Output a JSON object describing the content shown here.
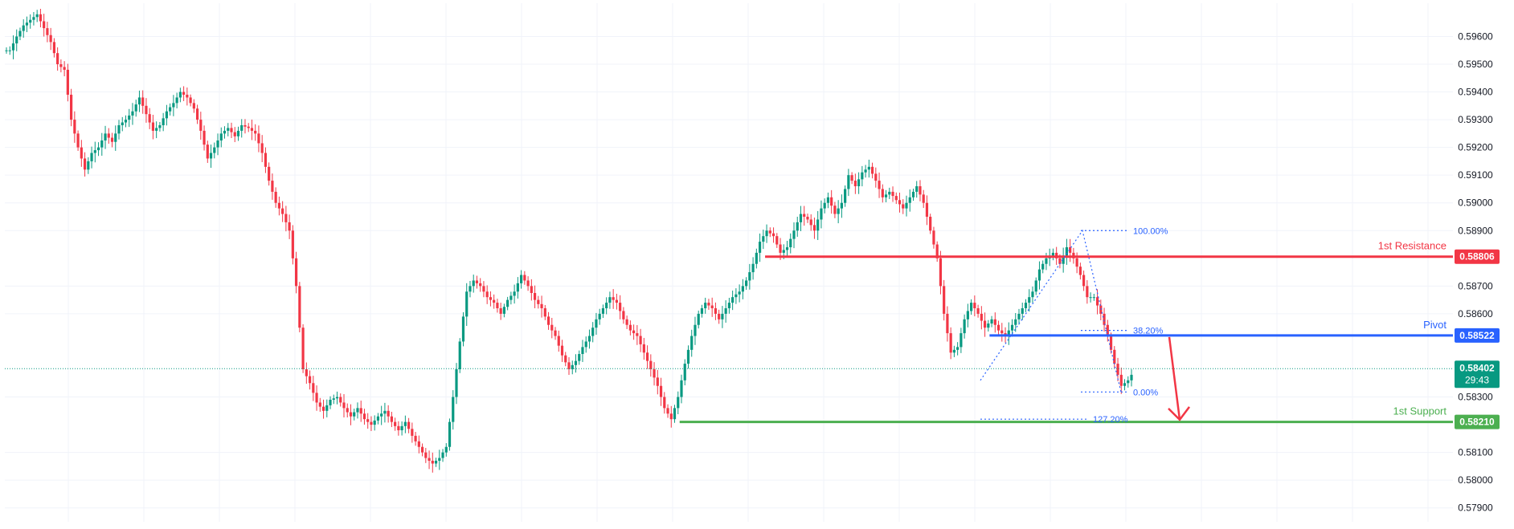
{
  "chart_data": {
    "type": "candlestick",
    "y_axis": {
      "ylim": [
        0.5785,
        0.5972
      ],
      "ticks": [
        "0.59600",
        "0.59500",
        "0.59400",
        "0.59300",
        "0.59200",
        "0.59100",
        "0.59000",
        "0.58900",
        "0.58700",
        "0.58600",
        "0.58300",
        "0.58100",
        "0.58000",
        "0.57900"
      ],
      "tick_values": [
        0.596,
        0.595,
        0.594,
        0.593,
        0.592,
        0.591,
        0.59,
        0.589,
        0.587,
        0.586,
        0.583,
        0.581,
        0.58,
        0.579
      ]
    },
    "levels": [
      {
        "id": "resistance",
        "name": "1st Resistance",
        "value": 0.58806,
        "value_label": "0.58806",
        "color": "#f23645",
        "x_from": 0.525,
        "x_to": 1.0
      },
      {
        "id": "pivot",
        "name": "Pivot",
        "value": 0.58522,
        "value_label": "0.58522",
        "color": "#2962ff",
        "x_from": 0.68,
        "x_to": 1.0
      },
      {
        "id": "support",
        "name": "1st Support",
        "value": 0.5821,
        "value_label": "0.58210",
        "color": "#4caf50",
        "x_from": 0.466,
        "x_to": 1.0
      }
    ],
    "current_price": {
      "value": 0.58402,
      "label": "0.58402",
      "countdown": "29:43",
      "color": "#089981"
    },
    "fib": {
      "color": "#2962ff",
      "levels": [
        {
          "label": "100.00%",
          "value": 0.589
        },
        {
          "label": "38.20%",
          "value": 0.5854
        },
        {
          "label": "0.00%",
          "value": 0.58318
        },
        {
          "label": "127.20%",
          "value": 0.5822
        }
      ]
    },
    "close_series": [
      0.5955,
      0.596,
      0.5964,
      0.5966,
      0.5968,
      0.5963,
      0.5958,
      0.595,
      0.5948,
      0.593,
      0.592,
      0.5912,
      0.5918,
      0.592,
      0.5925,
      0.5922,
      0.5928,
      0.593,
      0.5933,
      0.5938,
      0.5932,
      0.5926,
      0.5928,
      0.5933,
      0.5936,
      0.594,
      0.5938,
      0.5934,
      0.5926,
      0.5916,
      0.592,
      0.5925,
      0.5927,
      0.5924,
      0.5928,
      0.5927,
      0.5925,
      0.5918,
      0.5908,
      0.59,
      0.5896,
      0.589,
      0.587,
      0.584,
      0.5835,
      0.5828,
      0.5825,
      0.5829,
      0.583,
      0.5826,
      0.5823,
      0.5826,
      0.5822,
      0.582,
      0.5823,
      0.5825,
      0.5821,
      0.5818,
      0.5821,
      0.5816,
      0.5812,
      0.5808,
      0.5806,
      0.5808,
      0.5812,
      0.583,
      0.585,
      0.5868,
      0.5872,
      0.587,
      0.5866,
      0.5864,
      0.586,
      0.5865,
      0.5868,
      0.5874,
      0.587,
      0.5865,
      0.5862,
      0.5856,
      0.5852,
      0.5845,
      0.584,
      0.5843,
      0.5848,
      0.5852,
      0.5858,
      0.5862,
      0.5866,
      0.5864,
      0.5858,
      0.5854,
      0.5852,
      0.5846,
      0.584,
      0.5834,
      0.5826,
      0.5822,
      0.583,
      0.5842,
      0.5852,
      0.586,
      0.5864,
      0.5862,
      0.5858,
      0.5862,
      0.5866,
      0.5868,
      0.5872,
      0.5878,
      0.5886,
      0.589,
      0.5888,
      0.5882,
      0.5884,
      0.589,
      0.5896,
      0.5894,
      0.589,
      0.5898,
      0.5902,
      0.5896,
      0.59,
      0.591,
      0.5906,
      0.5911,
      0.5913,
      0.5908,
      0.5902,
      0.5904,
      0.5901,
      0.5898,
      0.5902,
      0.5906,
      0.59,
      0.589,
      0.588,
      0.586,
      0.5846,
      0.5848,
      0.5858,
      0.5864,
      0.586,
      0.5855,
      0.5858,
      0.5854,
      0.5852,
      0.5856,
      0.586,
      0.5864,
      0.5868,
      0.5876,
      0.588,
      0.5882,
      0.5878,
      0.5884,
      0.588,
      0.5874,
      0.5866,
      0.5866,
      0.586,
      0.5852,
      0.5842,
      0.5834,
      0.5836,
      0.584
    ]
  }
}
